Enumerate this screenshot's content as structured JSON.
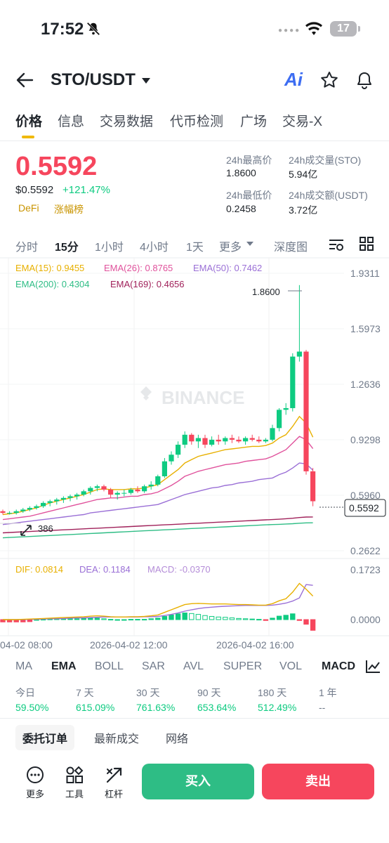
{
  "status": {
    "time": "17:52",
    "battery": "17"
  },
  "header": {
    "pair": "STO/USDT",
    "ai_label": "Ai"
  },
  "tabs": [
    "价格",
    "信息",
    "交易数据",
    "代币检测",
    "广场",
    "交易-X"
  ],
  "price": {
    "last": "0.5592",
    "usd": "$0.5592",
    "change": "+121.47%",
    "tags": [
      "DeFi",
      "涨幅榜"
    ],
    "high_label": "24h最高价",
    "high": "1.8600",
    "vol_label": "24h成交量(STO)",
    "vol": "5.94亿",
    "low_label": "24h最低价",
    "low": "0.2458",
    "amt_label": "24h成交额(USDT)",
    "amt": "3.72亿"
  },
  "timeframes": [
    "分时",
    "15分",
    "1小时",
    "4小时",
    "1天",
    "更多",
    "深度图"
  ],
  "ema_legend": {
    "ema15": "EMA(15): 0.9455",
    "ema26": "EMA(26): 0.8765",
    "ema50": "EMA(50): 0.7462",
    "ema200": "EMA(200): 0.4304",
    "ema169": "EMA(169): 0.4656"
  },
  "chart_data": {
    "type": "candlestick",
    "y_ticks": [
      "1.9311",
      "1.5973",
      "1.2636",
      "0.9298",
      "0.5960",
      "0.2622"
    ],
    "y_range": [
      0.2622,
      1.9311
    ],
    "x_labels": [
      "04-02 08:00",
      "2026-04-02 12:00",
      "2026-04-02 16:00"
    ],
    "high_marker": "1.8600",
    "current_price": "0.5592",
    "low_fragment": "386",
    "watermark": "BINANCE",
    "candles": [
      [
        0.5,
        0.51,
        0.48,
        0.49
      ],
      [
        0.49,
        0.5,
        0.48,
        0.49
      ],
      [
        0.49,
        0.51,
        0.48,
        0.5
      ],
      [
        0.5,
        0.52,
        0.49,
        0.51
      ],
      [
        0.51,
        0.53,
        0.5,
        0.52
      ],
      [
        0.52,
        0.54,
        0.51,
        0.53
      ],
      [
        0.53,
        0.56,
        0.52,
        0.55
      ],
      [
        0.55,
        0.57,
        0.53,
        0.56
      ],
      [
        0.56,
        0.58,
        0.54,
        0.57
      ],
      [
        0.57,
        0.59,
        0.55,
        0.58
      ],
      [
        0.58,
        0.6,
        0.56,
        0.59
      ],
      [
        0.59,
        0.61,
        0.57,
        0.6
      ],
      [
        0.6,
        0.63,
        0.59,
        0.62
      ],
      [
        0.62,
        0.65,
        0.6,
        0.64
      ],
      [
        0.64,
        0.66,
        0.62,
        0.65
      ],
      [
        0.65,
        0.66,
        0.62,
        0.63
      ],
      [
        0.63,
        0.64,
        0.58,
        0.6
      ],
      [
        0.6,
        0.62,
        0.57,
        0.61
      ],
      [
        0.61,
        0.63,
        0.59,
        0.61
      ],
      [
        0.61,
        0.64,
        0.6,
        0.63
      ],
      [
        0.63,
        0.65,
        0.61,
        0.62
      ],
      [
        0.62,
        0.66,
        0.61,
        0.65
      ],
      [
        0.65,
        0.68,
        0.63,
        0.66
      ],
      [
        0.66,
        0.72,
        0.65,
        0.71
      ],
      [
        0.71,
        0.82,
        0.7,
        0.8
      ],
      [
        0.8,
        0.86,
        0.78,
        0.84
      ],
      [
        0.84,
        0.92,
        0.82,
        0.9
      ],
      [
        0.9,
        0.98,
        0.88,
        0.96
      ],
      [
        0.96,
        0.97,
        0.9,
        0.92
      ],
      [
        0.92,
        0.96,
        0.88,
        0.94
      ],
      [
        0.94,
        0.96,
        0.88,
        0.9
      ],
      [
        0.9,
        0.95,
        0.89,
        0.93
      ],
      [
        0.93,
        0.96,
        0.9,
        0.92
      ],
      [
        0.92,
        0.95,
        0.9,
        0.94
      ],
      [
        0.94,
        0.96,
        0.91,
        0.93
      ],
      [
        0.93,
        0.95,
        0.91,
        0.92
      ],
      [
        0.92,
        0.95,
        0.9,
        0.94
      ],
      [
        0.94,
        0.96,
        0.92,
        0.93
      ],
      [
        0.93,
        0.95,
        0.91,
        0.92
      ],
      [
        0.92,
        0.94,
        0.91,
        0.93
      ],
      [
        0.93,
        1.02,
        0.92,
        1.0
      ],
      [
        1.0,
        1.12,
        0.98,
        1.11
      ],
      [
        1.11,
        1.15,
        1.08,
        1.12
      ],
      [
        1.12,
        1.45,
        1.1,
        1.43
      ],
      [
        1.43,
        1.86,
        1.4,
        1.46
      ],
      [
        1.46,
        1.47,
        0.72,
        0.74
      ],
      [
        0.74,
        0.76,
        0.53,
        0.56
      ]
    ],
    "ema15": [
      0.48,
      0.485,
      0.49,
      0.5,
      0.51,
      0.52,
      0.535,
      0.55,
      0.56,
      0.57,
      0.58,
      0.59,
      0.6,
      0.615,
      0.63,
      0.635,
      0.63,
      0.63,
      0.63,
      0.635,
      0.635,
      0.64,
      0.65,
      0.66,
      0.69,
      0.72,
      0.75,
      0.79,
      0.81,
      0.83,
      0.84,
      0.85,
      0.86,
      0.87,
      0.875,
      0.88,
      0.885,
      0.89,
      0.89,
      0.895,
      0.91,
      0.94,
      0.96,
      1.01,
      1.07,
      1.03,
      0.9455
    ],
    "ema26": [
      0.45,
      0.455,
      0.46,
      0.465,
      0.47,
      0.48,
      0.49,
      0.5,
      0.51,
      0.52,
      0.53,
      0.54,
      0.55,
      0.56,
      0.57,
      0.575,
      0.58,
      0.58,
      0.585,
      0.59,
      0.59,
      0.6,
      0.605,
      0.615,
      0.635,
      0.655,
      0.68,
      0.71,
      0.725,
      0.74,
      0.75,
      0.76,
      0.77,
      0.78,
      0.785,
      0.79,
      0.8,
      0.805,
      0.81,
      0.815,
      0.83,
      0.85,
      0.87,
      0.91,
      0.95,
      0.93,
      0.8765
    ],
    "ema50": [
      0.42,
      0.425,
      0.43,
      0.435,
      0.44,
      0.445,
      0.45,
      0.455,
      0.46,
      0.465,
      0.47,
      0.475,
      0.48,
      0.49,
      0.495,
      0.5,
      0.505,
      0.51,
      0.515,
      0.52,
      0.525,
      0.53,
      0.535,
      0.54,
      0.555,
      0.57,
      0.585,
      0.6,
      0.61,
      0.62,
      0.63,
      0.64,
      0.645,
      0.655,
      0.66,
      0.67,
      0.675,
      0.68,
      0.69,
      0.695,
      0.7,
      0.72,
      0.735,
      0.76,
      0.79,
      0.785,
      0.7462
    ],
    "ema169": [
      0.37,
      0.372,
      0.374,
      0.376,
      0.378,
      0.38,
      0.382,
      0.384,
      0.386,
      0.388,
      0.39,
      0.392,
      0.394,
      0.396,
      0.398,
      0.4,
      0.402,
      0.404,
      0.406,
      0.408,
      0.41,
      0.412,
      0.414,
      0.416,
      0.418,
      0.42,
      0.422,
      0.424,
      0.426,
      0.428,
      0.43,
      0.432,
      0.434,
      0.436,
      0.438,
      0.44,
      0.442,
      0.444,
      0.446,
      0.448,
      0.45,
      0.452,
      0.455,
      0.458,
      0.462,
      0.465,
      0.4656
    ],
    "ema200": [
      0.34,
      0.342,
      0.344,
      0.346,
      0.348,
      0.35,
      0.352,
      0.354,
      0.356,
      0.358,
      0.36,
      0.362,
      0.364,
      0.366,
      0.368,
      0.37,
      0.372,
      0.374,
      0.376,
      0.378,
      0.38,
      0.382,
      0.384,
      0.386,
      0.388,
      0.39,
      0.392,
      0.394,
      0.396,
      0.398,
      0.4,
      0.402,
      0.404,
      0.406,
      0.408,
      0.41,
      0.412,
      0.414,
      0.416,
      0.418,
      0.42,
      0.421,
      0.423,
      0.425,
      0.428,
      0.43,
      0.4304
    ],
    "macd": {
      "legend_dif": "DIF: 0.0814",
      "legend_dea": "DEA: 0.1184",
      "legend_macd": "MACD: -0.0370",
      "y_ticks": [
        "0.1723",
        "0.0000"
      ],
      "y_range": [
        -0.02,
        0.1723
      ],
      "dif": [
        0.0,
        0.0,
        0.0,
        0.001,
        0.002,
        0.003,
        0.004,
        0.005,
        0.006,
        0.007,
        0.008,
        0.009,
        0.01,
        0.012,
        0.013,
        0.012,
        0.01,
        0.009,
        0.009,
        0.01,
        0.01,
        0.011,
        0.013,
        0.016,
        0.025,
        0.034,
        0.043,
        0.052,
        0.055,
        0.056,
        0.055,
        0.054,
        0.054,
        0.054,
        0.053,
        0.052,
        0.052,
        0.051,
        0.05,
        0.05,
        0.055,
        0.065,
        0.072,
        0.095,
        0.125,
        0.105,
        0.0814
      ],
      "dea": [
        0.0,
        0.0,
        0.0,
        0.0,
        0.001,
        0.001,
        0.002,
        0.003,
        0.003,
        0.004,
        0.005,
        0.006,
        0.006,
        0.007,
        0.008,
        0.009,
        0.009,
        0.009,
        0.009,
        0.009,
        0.009,
        0.01,
        0.01,
        0.011,
        0.014,
        0.018,
        0.023,
        0.029,
        0.034,
        0.038,
        0.041,
        0.043,
        0.045,
        0.046,
        0.047,
        0.048,
        0.049,
        0.049,
        0.049,
        0.049,
        0.05,
        0.053,
        0.057,
        0.064,
        0.075,
        0.121,
        0.1184
      ],
      "hist": [
        -0.008,
        -0.008,
        -0.008,
        -0.008,
        -0.007,
        0.0,
        0.001,
        0.002,
        0.003,
        0.003,
        0.003,
        0.003,
        0.004,
        0.005,
        0.005,
        0.003,
        0.001,
        0.0,
        0.0,
        0.001,
        0.001,
        0.001,
        0.003,
        0.005,
        0.011,
        0.016,
        0.02,
        0.023,
        0.021,
        0.018,
        0.014,
        0.011,
        0.009,
        0.008,
        0.006,
        0.004,
        0.003,
        0.002,
        0.001,
        -0.003,
        0.005,
        0.012,
        0.015,
        0.02,
        -0.003,
        -0.016,
        -0.037
      ]
    }
  },
  "indicators": [
    "MA",
    "EMA",
    "BOLL",
    "SAR",
    "AVL",
    "SUPER",
    "VOL",
    "MACD"
  ],
  "performance": {
    "labels": [
      "今日",
      "7 天",
      "30 天",
      "90 天",
      "180 天",
      "1 年"
    ],
    "values": [
      "59.50%",
      "615.09%",
      "761.63%",
      "653.64%",
      "512.49%",
      "--"
    ]
  },
  "sub_tabs": [
    "委托订单",
    "最新成交",
    "网络"
  ],
  "tools": [
    "更多",
    "工具",
    "杠杆"
  ],
  "actions": {
    "buy": "买入",
    "sell": "卖出"
  },
  "colors": {
    "up": "#0ecb81",
    "down": "#f6465d",
    "brand": "#f0b90b"
  }
}
